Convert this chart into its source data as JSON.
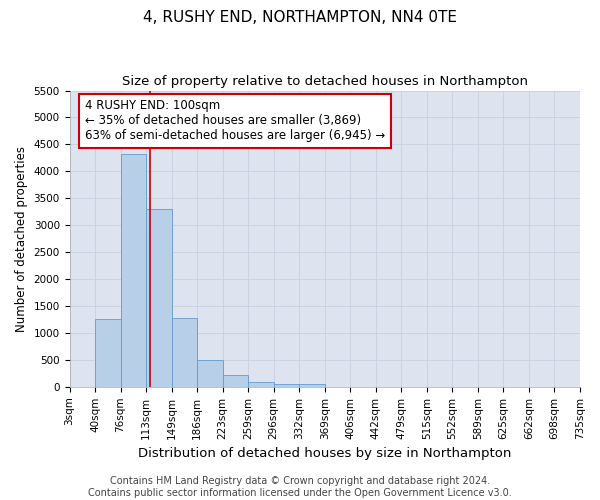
{
  "title": "4, RUSHY END, NORTHAMPTON, NN4 0TE",
  "subtitle": "Size of property relative to detached houses in Northampton",
  "xlabel": "Distribution of detached houses by size in Northampton",
  "ylabel": "Number of detached properties",
  "bar_values": [
    0,
    1260,
    4330,
    3300,
    1275,
    490,
    215,
    85,
    55,
    55,
    0,
    0,
    0,
    0,
    0,
    0,
    0,
    0,
    0,
    0
  ],
  "bar_labels": [
    "3sqm",
    "40sqm",
    "76sqm",
    "113sqm",
    "149sqm",
    "186sqm",
    "223sqm",
    "259sqm",
    "296sqm",
    "332sqm",
    "369sqm",
    "406sqm",
    "442sqm",
    "479sqm",
    "515sqm",
    "552sqm",
    "589sqm",
    "625sqm",
    "662sqm",
    "698sqm",
    "735sqm"
  ],
  "bar_color": "#b8cfe8",
  "bar_edgecolor": "#6699cc",
  "bar_width": 1.0,
  "ylim": [
    0,
    5500
  ],
  "yticks": [
    0,
    500,
    1000,
    1500,
    2000,
    2500,
    3000,
    3500,
    4000,
    4500,
    5000,
    5500
  ],
  "property_line_x": 2.67,
  "property_line_color": "#cc0000",
  "annotation_text": "4 RUSHY END: 100sqm\n← 35% of detached houses are smaller (3,869)\n63% of semi-detached houses are larger (6,945) →",
  "annotation_box_color": "#ffffff",
  "annotation_box_edgecolor": "#cc0000",
  "grid_color": "#c8d0e0",
  "background_color": "#dde4f0",
  "fig_background": "#ffffff",
  "title_fontsize": 11,
  "subtitle_fontsize": 9.5,
  "xlabel_fontsize": 9.5,
  "ylabel_fontsize": 8.5,
  "annotation_fontsize": 8.5,
  "tick_fontsize": 7.5,
  "footer_fontsize": 7,
  "footer_text": "Contains HM Land Registry data © Crown copyright and database right 2024.\nContains public sector information licensed under the Open Government Licence v3.0."
}
